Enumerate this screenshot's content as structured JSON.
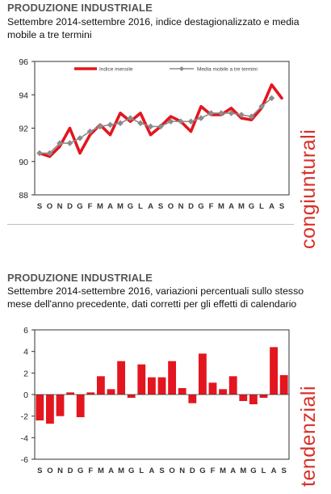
{
  "top": {
    "title": "PRODUZIONE INDUSTRIALE",
    "subtitle": "Settembre 2014-settembre 2016, indice destagionalizzato e media mobile a tre termini",
    "side_label": "congiunturali"
  },
  "bottom": {
    "title": "PRODUZIONE INDUSTRIALE",
    "subtitle": "Settembre 2014-settembre 2016, variazioni percentuali sullo stesso mese dell'anno precedente, dati corretti per gli effetti di calendario",
    "side_label": "tendenziali"
  },
  "colors": {
    "red": "#e3161f",
    "grey": "#8c8c8c",
    "axis": "#333333"
  },
  "chart_data": [
    {
      "type": "line",
      "categories": [
        "S",
        "O",
        "N",
        "D",
        "G",
        "F",
        "M",
        "A",
        "M",
        "G",
        "L",
        "A",
        "S",
        "O",
        "N",
        "D",
        "G",
        "F",
        "M",
        "A",
        "M",
        "G",
        "L",
        "A",
        "S"
      ],
      "series": [
        {
          "name": "Indice mensile",
          "values": [
            90.5,
            90.3,
            90.9,
            92.0,
            90.5,
            91.6,
            92.2,
            91.6,
            92.9,
            92.4,
            92.9,
            91.6,
            92.1,
            92.7,
            92.4,
            91.8,
            93.3,
            92.8,
            92.8,
            93.2,
            92.6,
            92.5,
            93.2,
            94.6,
            93.8
          ]
        },
        {
          "name": "Media mobile a tre termini",
          "values": [
            90.5,
            90.5,
            91.1,
            91.1,
            91.4,
            91.8,
            92.1,
            92.2,
            92.3,
            92.6,
            92.3,
            92.1,
            92.1,
            92.4,
            92.4,
            92.4,
            92.6,
            92.9,
            92.9,
            92.9,
            92.8,
            92.7,
            93.3,
            93.8,
            null
          ]
        }
      ],
      "ylim": [
        88,
        96
      ],
      "yticks": [
        88,
        90,
        92,
        94,
        96
      ],
      "legend": "top",
      "grid": false
    },
    {
      "type": "bar",
      "categories": [
        "S",
        "O",
        "N",
        "D",
        "G",
        "F",
        "M",
        "A",
        "M",
        "G",
        "L",
        "A",
        "S",
        "O",
        "N",
        "D",
        "G",
        "F",
        "M",
        "A",
        "M",
        "G",
        "L",
        "A",
        "S"
      ],
      "values": [
        -2.4,
        -2.7,
        -2.0,
        0.2,
        -2.1,
        0.2,
        1.7,
        0.5,
        3.1,
        -0.3,
        2.8,
        1.6,
        1.6,
        3.1,
        0.6,
        -0.8,
        3.8,
        1.1,
        0.5,
        1.7,
        -0.6,
        -0.9,
        -0.3,
        4.4,
        1.8
      ],
      "ylim": [
        -6,
        6
      ],
      "yticks": [
        -6,
        -4,
        -2,
        0,
        2,
        4,
        6
      ],
      "grid": false
    }
  ]
}
